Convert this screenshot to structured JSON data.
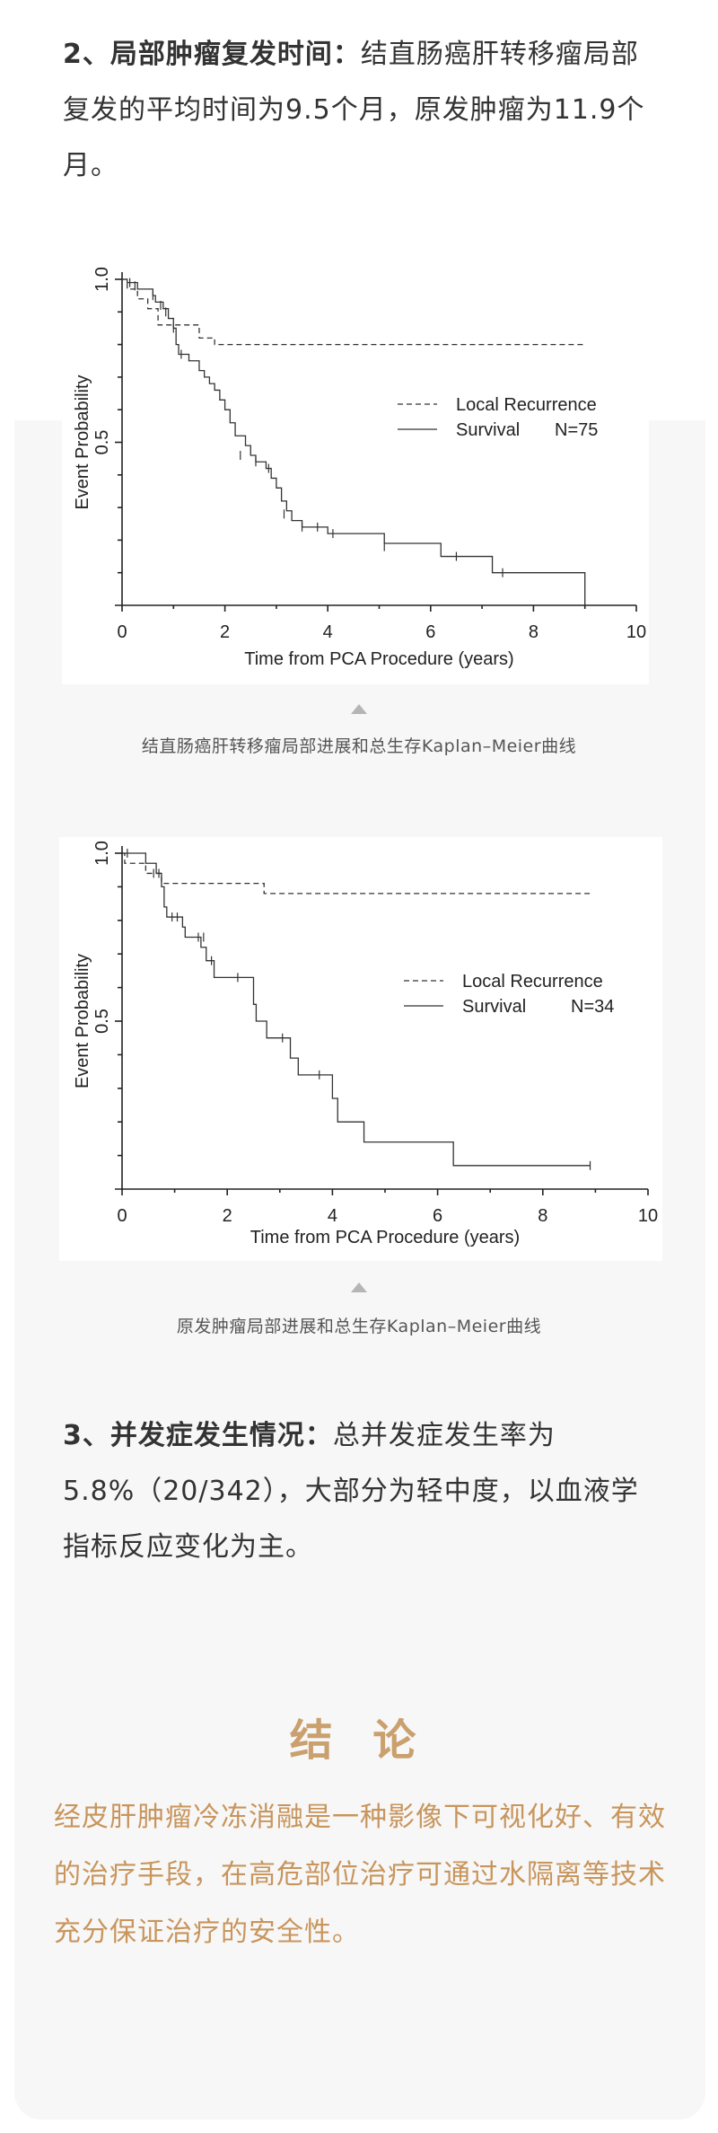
{
  "section2": {
    "heading": "2、局部肿瘤复发时间：",
    "body": "结直肠癌肝转移瘤局部复发的平均时间为9.5个月，原发肿瘤为11.9个月。"
  },
  "figures": [
    {
      "caption": "结直肠癌肝转移瘤局部进展和总生存Kaplan–Meier曲线",
      "pointer_icon": "triangle-up-icon"
    },
    {
      "caption": "原发肿瘤局部进展和总生存Kaplan–Meier曲线",
      "pointer_icon": "triangle-up-icon"
    }
  ],
  "section3": {
    "heading": "3、并发症发生情况：",
    "body": "总并发症发生率为5.8%（20/342），大部分为轻中度，以血液学指标反应变化为主。"
  },
  "conclusion": {
    "title": "结 论",
    "body": "经皮肝肿瘤冷冻消融是一种影像下可视化好、有效的治疗手段，在高危部位治疗可通过水隔离等技术充分保证治疗的安全性。",
    "color": "#c8955c"
  },
  "chart_data": [
    {
      "type": "line",
      "xlabel": "Time from PCA Procedure (years)",
      "ylabel": "Event Probability",
      "xlim": [
        0,
        10
      ],
      "ylim": [
        0,
        1.0
      ],
      "xticks": [
        "0",
        "2",
        "4",
        "6",
        "8",
        "10"
      ],
      "yticks": [
        "0.5",
        "1.0"
      ],
      "legend": {
        "placement": "right",
        "n_label": "N=75"
      },
      "series": [
        {
          "name": "Local Recurrence",
          "style": "dashed",
          "points": [
            [
              0,
              1
            ],
            [
              0.1,
              0.97
            ],
            [
              0.3,
              0.94
            ],
            [
              0.5,
              0.91
            ],
            [
              0.7,
              0.86
            ],
            [
              1.5,
              0.82
            ],
            [
              1.8,
              0.8
            ],
            [
              9.0,
              0.8
            ]
          ]
        },
        {
          "name": "Survival",
          "style": "solid",
          "points": [
            [
              0,
              1
            ],
            [
              0.1,
              0.99
            ],
            [
              0.3,
              0.97
            ],
            [
              0.6,
              0.95
            ],
            [
              0.65,
              0.93
            ],
            [
              0.8,
              0.91
            ],
            [
              0.9,
              0.88
            ],
            [
              1.0,
              0.85
            ],
            [
              1.05,
              0.8
            ],
            [
              1.1,
              0.77
            ],
            [
              1.3,
              0.75
            ],
            [
              1.5,
              0.72
            ],
            [
              1.6,
              0.7
            ],
            [
              1.7,
              0.68
            ],
            [
              1.8,
              0.66
            ],
            [
              1.9,
              0.63
            ],
            [
              2.0,
              0.6
            ],
            [
              2.1,
              0.56
            ],
            [
              2.2,
              0.52
            ],
            [
              2.4,
              0.49
            ],
            [
              2.5,
              0.46
            ],
            [
              2.6,
              0.44
            ],
            [
              2.8,
              0.42
            ],
            [
              2.9,
              0.39
            ],
            [
              3.0,
              0.36
            ],
            [
              3.1,
              0.32
            ],
            [
              3.2,
              0.29
            ],
            [
              3.3,
              0.26
            ],
            [
              3.5,
              0.24
            ],
            [
              4.0,
              0.22
            ],
            [
              5.1,
              0.19
            ],
            [
              6.2,
              0.15
            ],
            [
              7.2,
              0.1
            ],
            [
              9.0,
              0.1
            ],
            [
              9.0,
              0
            ]
          ],
          "censored": [
            [
              0.15,
              0.99
            ],
            [
              0.25,
              0.98
            ],
            [
              0.6,
              0.95
            ],
            [
              0.75,
              0.92
            ],
            [
              0.85,
              0.9
            ],
            [
              1.0,
              0.85
            ],
            [
              1.15,
              0.77
            ],
            [
              2.3,
              0.46
            ],
            [
              2.6,
              0.44
            ],
            [
              2.85,
              0.42
            ],
            [
              3.15,
              0.28
            ],
            [
              3.5,
              0.24
            ],
            [
              3.8,
              0.24
            ],
            [
              4.1,
              0.22
            ],
            [
              5.1,
              0.18
            ],
            [
              6.5,
              0.15
            ],
            [
              7.4,
              0.1
            ]
          ]
        }
      ]
    },
    {
      "type": "line",
      "xlabel": "Time from PCA Procedure (years)",
      "ylabel": "Event Probability",
      "xlim": [
        0,
        10
      ],
      "ylim": [
        0,
        1.0
      ],
      "xticks": [
        "0",
        "2",
        "4",
        "6",
        "8",
        "10"
      ],
      "yticks": [
        "0.5",
        "1.0"
      ],
      "legend": {
        "placement": "right",
        "n_label": "N=34"
      },
      "series": [
        {
          "name": "Local Recurrence",
          "style": "dashed",
          "points": [
            [
              0,
              1
            ],
            [
              0.05,
              0.97
            ],
            [
              0.45,
              0.94
            ],
            [
              0.75,
              0.91
            ],
            [
              2.7,
              0.88
            ],
            [
              8.9,
              0.88
            ]
          ]
        },
        {
          "name": "Survival",
          "style": "solid",
          "points": [
            [
              0,
              1
            ],
            [
              0.45,
              0.97
            ],
            [
              0.65,
              0.94
            ],
            [
              0.75,
              0.9
            ],
            [
              0.8,
              0.84
            ],
            [
              0.85,
              0.81
            ],
            [
              1.15,
              0.78
            ],
            [
              1.2,
              0.75
            ],
            [
              1.5,
              0.72
            ],
            [
              1.6,
              0.68
            ],
            [
              1.75,
              0.63
            ],
            [
              2.5,
              0.55
            ],
            [
              2.55,
              0.5
            ],
            [
              2.75,
              0.45
            ],
            [
              3.2,
              0.39
            ],
            [
              3.35,
              0.34
            ],
            [
              4.0,
              0.27
            ],
            [
              4.1,
              0.2
            ],
            [
              4.6,
              0.14
            ],
            [
              6.3,
              0.07
            ],
            [
              8.9,
              0.07
            ]
          ],
          "censored": [
            [
              0.1,
              1.0
            ],
            [
              0.6,
              0.94
            ],
            [
              0.7,
              0.94
            ],
            [
              0.95,
              0.81
            ],
            [
              1.05,
              0.81
            ],
            [
              1.45,
              0.75
            ],
            [
              1.55,
              0.75
            ],
            [
              1.7,
              0.68
            ],
            [
              2.2,
              0.63
            ],
            [
              3.05,
              0.45
            ],
            [
              3.75,
              0.34
            ],
            [
              8.9,
              0.07
            ]
          ]
        }
      ]
    }
  ]
}
